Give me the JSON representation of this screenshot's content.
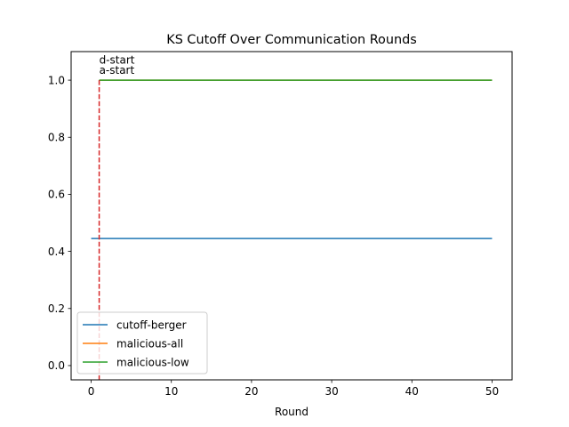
{
  "chart_data": {
    "type": "line",
    "title": "KS Cutoff Over Communication Rounds",
    "xlabel": "Round",
    "ylabel": "",
    "xlim": [
      -2.5,
      52.5
    ],
    "ylim": [
      -0.05,
      1.1
    ],
    "xticks": [
      0,
      10,
      20,
      30,
      40,
      50
    ],
    "yticks": [
      0.0,
      0.2,
      0.4,
      0.6,
      0.8,
      1.0
    ],
    "xtick_labels": [
      "0",
      "10",
      "20",
      "30",
      "40",
      "50"
    ],
    "ytick_labels": [
      "0.0",
      "0.2",
      "0.4",
      "0.6",
      "0.8",
      "1.0"
    ],
    "grid": false,
    "legend_position": "lower-left",
    "series": [
      {
        "name": "cutoff-berger",
        "color": "#1f77b4",
        "x": [
          0,
          50
        ],
        "y": [
          0.445,
          0.445
        ]
      },
      {
        "name": "malicious-all",
        "color": "#ff7f0e",
        "x": [
          1,
          50
        ],
        "y": [
          1.0,
          1.0
        ]
      },
      {
        "name": "malicious-low",
        "color": "#2ca02c",
        "x": [
          1,
          50
        ],
        "y": [
          1.0,
          1.0
        ]
      }
    ],
    "vlines": [
      {
        "x": 1,
        "color": "#d62728",
        "style": "dashed",
        "ymin": -0.05,
        "ymax": 1.0
      }
    ],
    "annotations": [
      {
        "text": "d-start",
        "x": 1,
        "y": 1.07
      },
      {
        "text": "a-start",
        "x": 1,
        "y": 1.035
      }
    ]
  }
}
